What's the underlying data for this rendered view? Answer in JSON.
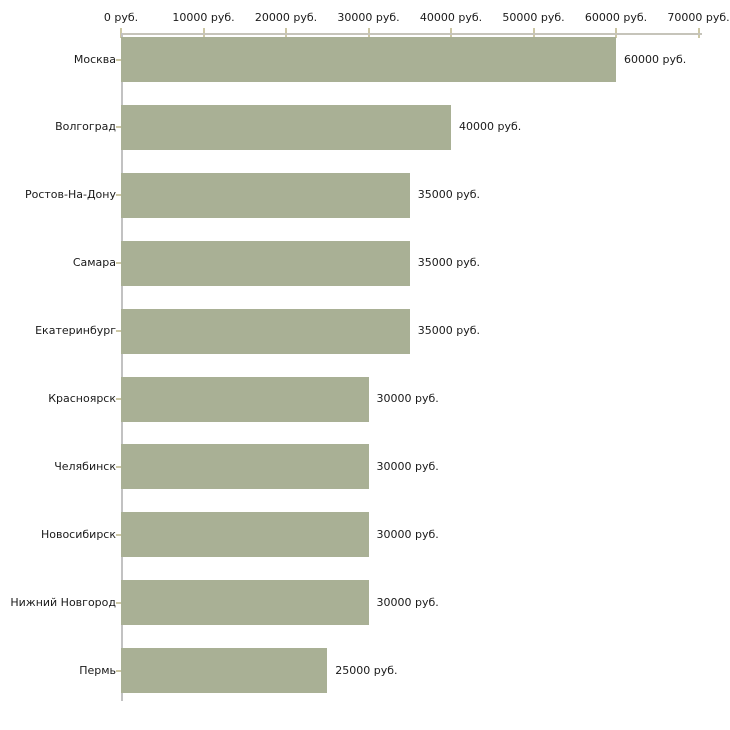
{
  "chart_data": {
    "type": "bar",
    "orientation": "horizontal",
    "title": "",
    "xlabel": "",
    "ylabel": "",
    "unit": "руб.",
    "categories": [
      "Москва",
      "Волгоград",
      "Ростов-На-Дону",
      "Самара",
      "Екатеринбург",
      "Красноярск",
      "Челябинск",
      "Новосибирск",
      "Нижний Новгород",
      "Пермь"
    ],
    "values": [
      60000,
      40000,
      35000,
      35000,
      35000,
      30000,
      30000,
      30000,
      30000,
      25000
    ],
    "value_labels": [
      "60000 руб.",
      "40000 руб.",
      "35000 руб.",
      "35000 руб.",
      "35000 руб.",
      "30000 руб.",
      "30000 руб.",
      "30000 руб.",
      "30000 руб.",
      "25000 руб."
    ],
    "x_ticks": [
      0,
      10000,
      20000,
      30000,
      40000,
      50000,
      60000,
      70000
    ],
    "x_tick_labels": [
      "0 руб.",
      "10000 руб.",
      "20000 руб.",
      "30000 руб.",
      "40000 руб.",
      "50000 руб.",
      "60000 руб.",
      "70000 руб."
    ],
    "xlim": [
      0,
      70000
    ],
    "axis_position": "top",
    "grid": false,
    "legend": null
  },
  "colors": {
    "bar": "#a9b095",
    "x_axis_line": "#c6c4ba",
    "y_axis_line": "#c2c2c2",
    "tick_mark": "#cdc8a6",
    "text": "#1a1a1a",
    "background": "#ffffff"
  }
}
